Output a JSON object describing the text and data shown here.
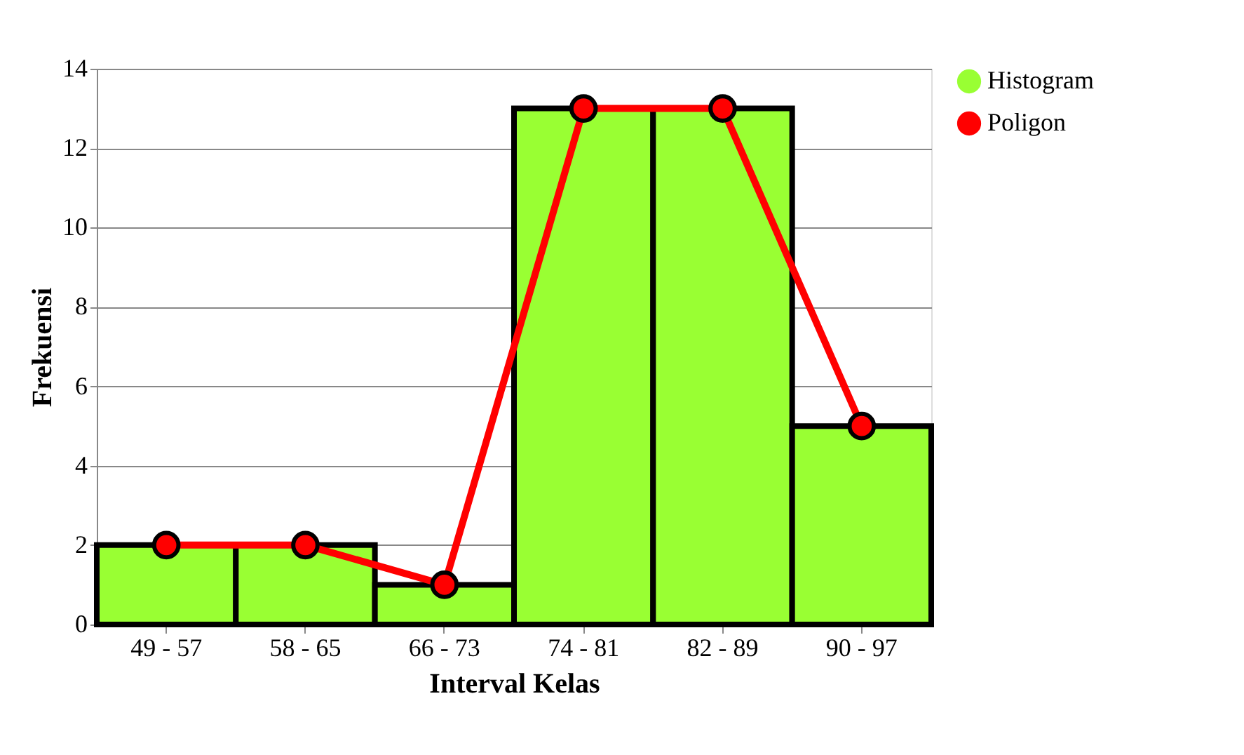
{
  "chart_data": {
    "type": "bar",
    "xlabel": "Interval Kelas",
    "ylabel": "Frekuensi",
    "categories": [
      "49 - 57",
      "58 - 65",
      "66 - 73",
      "74 - 81",
      "82 - 89",
      "90 - 97"
    ],
    "series": [
      {
        "name": "Histogram",
        "color": "#99ff33",
        "values": [
          2,
          2,
          1,
          13,
          13,
          5
        ]
      },
      {
        "name": "Poligon",
        "type": "line",
        "color": "#ff0000",
        "values": [
          2,
          2,
          1,
          13,
          13,
          5
        ]
      }
    ],
    "ylim": [
      0,
      14
    ],
    "yticks": [
      0,
      2,
      4,
      6,
      8,
      10,
      12,
      14
    ],
    "grid": "y",
    "legend": "right",
    "marker": "circle"
  }
}
